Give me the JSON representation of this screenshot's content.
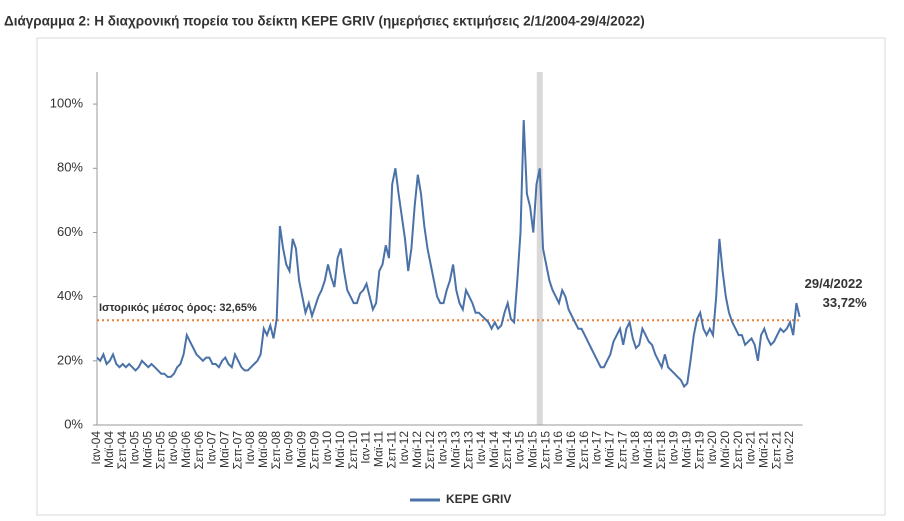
{
  "chart_data": {
    "type": "line",
    "title": "Διάγραμμα 2: Η διαχρονική πορεία του δείκτη ΚΕΡΕ GRIV (ημερήσιες εκτιμήσεις 2/1/2004-29/4/2022)",
    "categories": [
      "Ιαν-04",
      null,
      null,
      null,
      "Μαϊ-04",
      null,
      null,
      null,
      "Σεπ-04",
      null,
      null,
      null,
      "Ιαν-05",
      null,
      null,
      null,
      "Μαϊ-05",
      null,
      null,
      null,
      "Σεπ-05",
      null,
      null,
      null,
      "Ιαν-06",
      null,
      null,
      null,
      "Μαϊ-06",
      null,
      null,
      null,
      "Σεπ-06",
      null,
      null,
      null,
      "Ιαν-07",
      null,
      null,
      null,
      "Μαϊ-07",
      null,
      null,
      null,
      "Σεπ-07",
      null,
      null,
      null,
      "Ιαν-08",
      null,
      null,
      null,
      "Μαϊ-08",
      null,
      null,
      null,
      "Σεπ-08",
      null,
      null,
      null,
      "Ιαν-09",
      null,
      null,
      null,
      "Μαϊ-09",
      null,
      null,
      null,
      "Σεπ-09",
      null,
      null,
      null,
      "Ιαν-10",
      null,
      null,
      null,
      "Μαϊ-10",
      null,
      null,
      null,
      "Σεπ-10",
      null,
      null,
      null,
      "Ιαν-11",
      null,
      null,
      null,
      "Μαϊ-11",
      null,
      null,
      null,
      "Σεπ-11",
      null,
      null,
      null,
      "Ιαν-12",
      null,
      null,
      null,
      "Μαϊ-12",
      null,
      null,
      null,
      "Σεπ-12",
      null,
      null,
      null,
      "Ιαν-13",
      null,
      null,
      null,
      "Μαϊ-13",
      null,
      null,
      null,
      "Σεπ-13",
      null,
      null,
      null,
      "Ιαν-14",
      null,
      null,
      null,
      "Μαϊ-14",
      null,
      null,
      null,
      "Σεπ-14",
      null,
      null,
      null,
      "Ιαν-15",
      null,
      null,
      null,
      "Μαϊ-15",
      null,
      null,
      null,
      "Σεπ-15",
      null,
      null,
      null,
      "Ιαν-16",
      null,
      null,
      null,
      "Μαϊ-16",
      null,
      null,
      null,
      "Σεπ-16",
      null,
      null,
      null,
      "Ιαν-17",
      null,
      null,
      null,
      "Μαϊ-17",
      null,
      null,
      null,
      "Σεπ-17",
      null,
      null,
      null,
      "Ιαν-18",
      null,
      null,
      null,
      "Μαϊ-18",
      null,
      null,
      null,
      "Σεπ-18",
      null,
      null,
      null,
      "Ιαν-19",
      null,
      null,
      null,
      "Μαϊ-19",
      null,
      null,
      null,
      "Σεπ-19",
      null,
      null,
      null,
      "Ιαν-20",
      null,
      null,
      null,
      "Μαϊ-20",
      null,
      null,
      null,
      "Σεπ-20",
      null,
      null,
      null,
      "Ιαν-21",
      null,
      null,
      null,
      "Μαϊ-21",
      null,
      null,
      null,
      "Σεπ-21",
      null,
      null,
      null,
      "Ιαν-22",
      null,
      null,
      null
    ],
    "series": [
      {
        "name": "KEPE GRIV",
        "color": "#4a72a8",
        "values": [
          21,
          20,
          22,
          19,
          20,
          22,
          19,
          18,
          19,
          18,
          19,
          18,
          17,
          18,
          20,
          19,
          18,
          19,
          18,
          17,
          16,
          16,
          15,
          15,
          16,
          18,
          19,
          22,
          28,
          26,
          24,
          22,
          21,
          20,
          21,
          21,
          19,
          19,
          18,
          20,
          21,
          19,
          18,
          22,
          20,
          18,
          17,
          17,
          18,
          19,
          20,
          22,
          30,
          28,
          31,
          27,
          33,
          62,
          55,
          50,
          48,
          58,
          55,
          45,
          40,
          35,
          38,
          34,
          37,
          40,
          42,
          45,
          50,
          46,
          43,
          52,
          55,
          48,
          42,
          40,
          38,
          38,
          41,
          42,
          44,
          40,
          36,
          38,
          48,
          50,
          56,
          52,
          75,
          80,
          72,
          65,
          58,
          48,
          55,
          68,
          78,
          72,
          62,
          55,
          50,
          45,
          40,
          38,
          38,
          42,
          45,
          50,
          42,
          38,
          36,
          42,
          40,
          38,
          35,
          35,
          34,
          33,
          32,
          30,
          32,
          30,
          31,
          35,
          38,
          33,
          32,
          45,
          60,
          95,
          72,
          68,
          60,
          75,
          80,
          55,
          50,
          45,
          42,
          40,
          38,
          42,
          40,
          36,
          34,
          32,
          30,
          30,
          28,
          26,
          24,
          22,
          20,
          18,
          18,
          20,
          22,
          26,
          28,
          30,
          25,
          30,
          32,
          27,
          24,
          25,
          30,
          28,
          26,
          25,
          22,
          20,
          18,
          22,
          18,
          17,
          16,
          15,
          14,
          12,
          13,
          20,
          28,
          33,
          35,
          30,
          28,
          30,
          28,
          40,
          58,
          48,
          40,
          35,
          32,
          30,
          28,
          28,
          25,
          26,
          27,
          25,
          20,
          28,
          30,
          27,
          25,
          26,
          28,
          30,
          29,
          30,
          32,
          28,
          38,
          33.72
        ]
      }
    ],
    "ylim": [
      0,
      110
    ],
    "yticks": [
      {
        "value": 0,
        "label": "0%"
      },
      {
        "value": 20,
        "label": "20%"
      },
      {
        "value": 40,
        "label": "40%"
      },
      {
        "value": 60,
        "label": "60%"
      },
      {
        "value": 80,
        "label": "80%"
      },
      {
        "value": 100,
        "label": "100%"
      }
    ],
    "mean_line": {
      "value": 32.65,
      "label": "Ιστορικός μέσος όρος: 32,65%",
      "color": "#ed7d31"
    },
    "end_annotation": {
      "date": "29/4/2022",
      "label": "33,72%"
    },
    "highlight_index": 138,
    "legend": "bottom"
  }
}
